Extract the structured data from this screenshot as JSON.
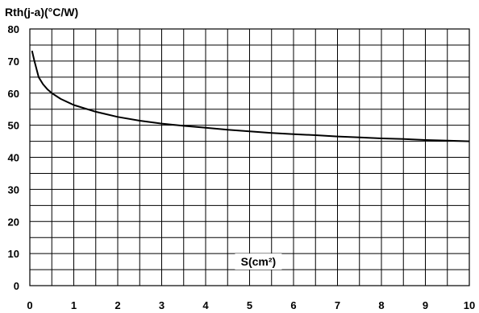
{
  "chart_data": {
    "type": "line",
    "title": "Rth(j-a)(°C/W)",
    "xlabel": "S(cm²)",
    "ylabel": "",
    "xlim": [
      0,
      10
    ],
    "ylim": [
      0,
      80
    ],
    "x_ticks": [
      "0",
      "1",
      "2",
      "3",
      "4",
      "5",
      "6",
      "7",
      "8",
      "9",
      "10"
    ],
    "y_ticks": [
      "0",
      "10",
      "20",
      "30",
      "40",
      "50",
      "60",
      "70",
      "80"
    ],
    "grid": true,
    "x_minor_step": 0.5,
    "y_minor_step": 5,
    "series": [
      {
        "name": "",
        "color": "#000000",
        "x": [
          0.05,
          0.1,
          0.2,
          0.3,
          0.4,
          0.5,
          0.7,
          1.0,
          1.5,
          2.0,
          2.5,
          3.0,
          3.5,
          4.0,
          4.5,
          5.0,
          5.5,
          6.0,
          6.5,
          7.0,
          7.5,
          8.0,
          8.5,
          9.0,
          9.5,
          10.0
        ],
        "y": [
          73.2,
          70.2,
          65.0,
          62.8,
          61.2,
          60.0,
          58.2,
          56.3,
          54.2,
          52.6,
          51.4,
          50.5,
          49.8,
          49.2,
          48.6,
          48.1,
          47.6,
          47.2,
          46.9,
          46.5,
          46.2,
          45.9,
          45.7,
          45.4,
          45.2,
          45.0
        ]
      }
    ]
  }
}
